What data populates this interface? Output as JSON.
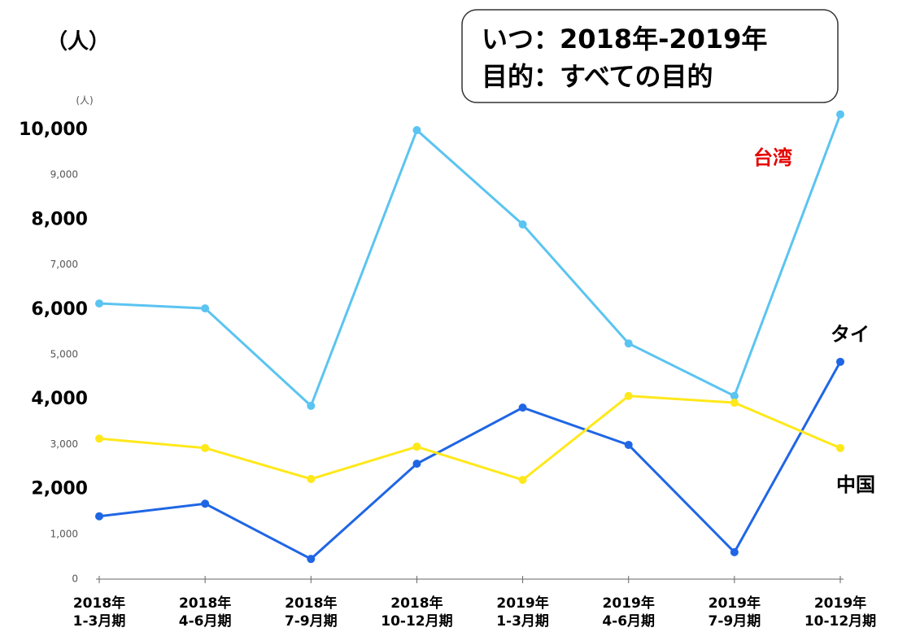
{
  "chart_data": {
    "type": "line",
    "unit_label": "（人）",
    "axis_unit": "(人)",
    "annotations": [
      "いつ：2018年-2019年",
      "目的：すべての目的"
    ],
    "categories": [
      [
        "2018年",
        "1-3月期"
      ],
      [
        "2018年",
        "4-6月期"
      ],
      [
        "2018年",
        "7-9月期"
      ],
      [
        "2018年",
        "10-12月期"
      ],
      [
        "2019年",
        "1-3月期"
      ],
      [
        "2019年",
        "4-6月期"
      ],
      [
        "2019年",
        "7-9月期"
      ],
      [
        "2019年",
        "10-12月期"
      ]
    ],
    "series": [
      {
        "name": "台湾",
        "color": "#5bc4f1",
        "label_color": "#e60000",
        "values": [
          6140,
          6030,
          3860,
          10000,
          7900,
          5250,
          4080,
          10350
        ]
      },
      {
        "name": "タイ",
        "color": "#1f66e5",
        "label_color": "#000000",
        "values": [
          1400,
          1680,
          450,
          2570,
          3820,
          2990,
          600,
          4840
        ]
      },
      {
        "name": "中国",
        "color": "#ffe81a",
        "label_color": "#000000",
        "values": [
          3130,
          2920,
          2230,
          2950,
          2210,
          4080,
          3930,
          2920
        ]
      }
    ],
    "ylim": [
      0,
      10000
    ],
    "yticks": [
      0,
      {
        "value": 1000,
        "label": "1,000"
      },
      {
        "value": 2000,
        "label": "2,000"
      },
      {
        "value": 3000,
        "label": "3,000"
      },
      {
        "value": 4000,
        "label": "4,000"
      },
      {
        "value": 5000,
        "label": "5,000"
      },
      {
        "value": 6000,
        "label": "6,000"
      },
      {
        "value": 7000,
        "label": "7,000"
      },
      {
        "value": 8000,
        "label": "8,000"
      },
      {
        "value": 9000,
        "label": "9,000"
      },
      {
        "value": 10000,
        "label": "10,000"
      }
    ],
    "grid": false
  }
}
